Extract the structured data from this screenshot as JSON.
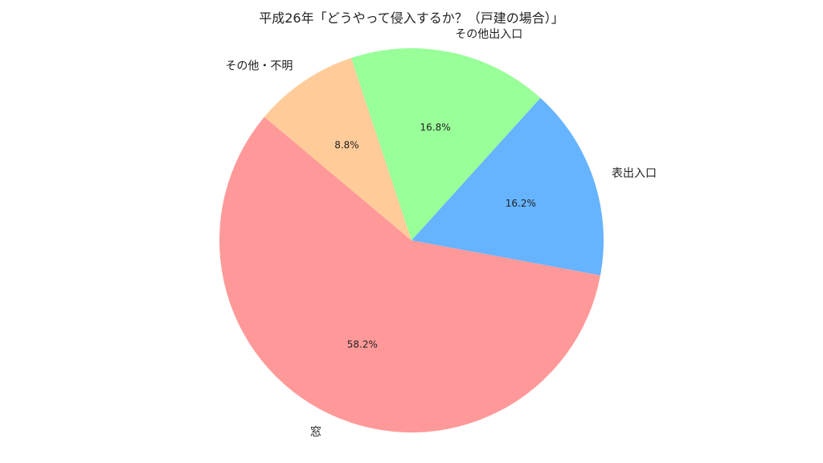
{
  "chart_data": {
    "type": "pie",
    "title": "平成26年「どうやって侵入するか？（戸建の場合）」",
    "categories": [
      "窓",
      "表出入口",
      "その他出入口",
      "その他・不明"
    ],
    "values": [
      58.2,
      16.2,
      16.8,
      8.8
    ],
    "value_labels": [
      "58.2%",
      "16.2%",
      "16.8%",
      "8.8%"
    ],
    "colors": [
      "#ff9999",
      "#66b3ff",
      "#99ff99",
      "#ffcc99"
    ],
    "start_angle_deg": 140,
    "direction": "counterclockwise",
    "legend": "none"
  }
}
